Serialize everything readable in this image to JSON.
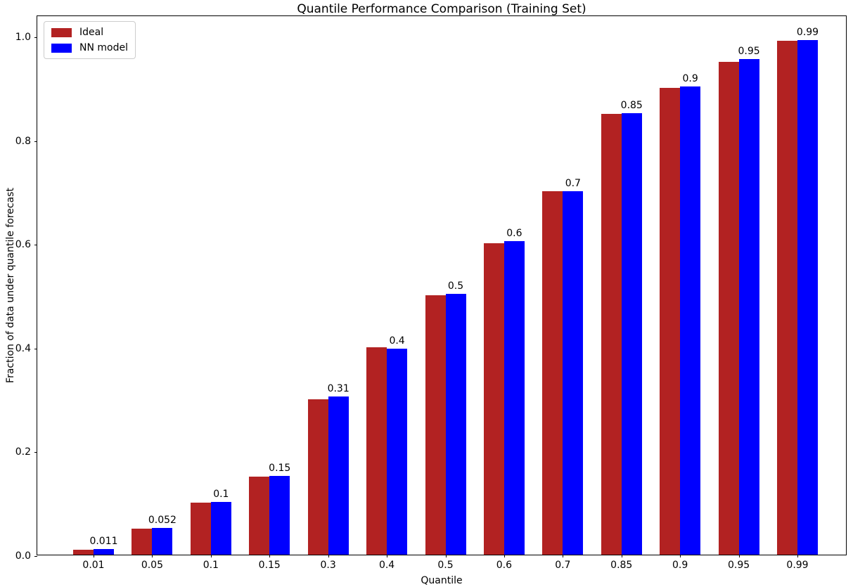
{
  "chart_data": {
    "type": "bar",
    "title": "Quantile Performance Comparison (Training Set)",
    "xlabel": "Quantile",
    "ylabel": "Fraction of data under quantile forecast",
    "categories": [
      "0.01",
      "0.05",
      "0.1",
      "0.15",
      "0.3",
      "0.4",
      "0.5",
      "0.6",
      "0.7",
      "0.85",
      "0.9",
      "0.95",
      "0.99"
    ],
    "series": [
      {
        "name": "Ideal",
        "color": "#b22222",
        "values": [
          0.01,
          0.05,
          0.1,
          0.15,
          0.3,
          0.4,
          0.5,
          0.6,
          0.7,
          0.85,
          0.9,
          0.95,
          0.99
        ]
      },
      {
        "name": "NN model",
        "color": "#0000ff",
        "values": [
          0.011,
          0.052,
          0.101,
          0.152,
          0.305,
          0.397,
          0.503,
          0.605,
          0.701,
          0.851,
          0.903,
          0.955,
          0.992
        ]
      }
    ],
    "bar_labels": [
      "0.011",
      "0.052",
      "0.1",
      "0.15",
      "0.31",
      "0.4",
      "0.5",
      "0.6",
      "0.7",
      "0.85",
      "0.9",
      "0.95",
      "0.99"
    ],
    "yticks": [
      "0.0",
      "0.2",
      "0.4",
      "0.6",
      "0.8",
      "1.0"
    ],
    "ylim": [
      0,
      1.04
    ],
    "grid": false,
    "legend_position": "upper left"
  }
}
